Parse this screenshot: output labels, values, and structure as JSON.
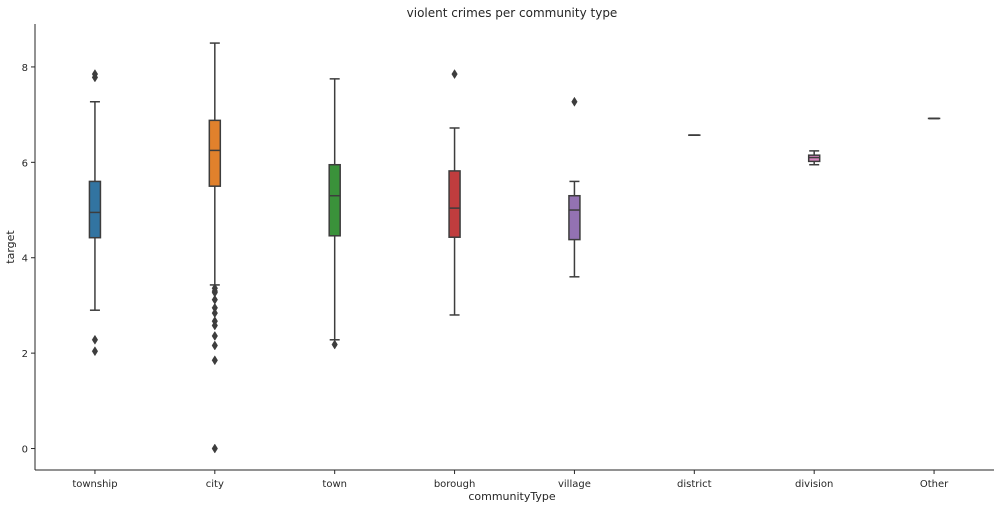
{
  "chart_data": {
    "type": "box",
    "title": "violent crimes per community type",
    "xlabel": "communityType",
    "ylabel": "target",
    "ylim": [
      -0.45,
      8.9
    ],
    "yticks": [
      0,
      2,
      4,
      6,
      8
    ],
    "grid": false,
    "categories": [
      "township",
      "city",
      "town",
      "borough",
      "village",
      "district",
      "division",
      "Other"
    ],
    "series": [
      {
        "category": "township",
        "color": "#3274a1",
        "q1": 4.42,
        "median": 4.95,
        "q3": 5.6,
        "whisker_low": 2.9,
        "whisker_high": 7.27,
        "outliers": [
          7.78,
          7.85,
          2.28,
          2.04
        ]
      },
      {
        "category": "city",
        "color": "#e1812c",
        "q1": 5.5,
        "median": 6.25,
        "q3": 6.88,
        "whisker_low": 3.43,
        "whisker_high": 8.5,
        "outliers": [
          3.36,
          3.3,
          3.27,
          3.12,
          2.95,
          2.84,
          2.67,
          2.58,
          2.36,
          2.16,
          1.85,
          0.0
        ]
      },
      {
        "category": "town",
        "color": "#3a923a",
        "q1": 4.46,
        "median": 5.3,
        "q3": 5.95,
        "whisker_low": 2.28,
        "whisker_high": 7.75,
        "outliers": [
          2.18
        ]
      },
      {
        "category": "borough",
        "color": "#c03d3e",
        "q1": 4.43,
        "median": 5.04,
        "q3": 5.82,
        "whisker_low": 2.8,
        "whisker_high": 6.72,
        "outliers": [
          7.85
        ]
      },
      {
        "category": "village",
        "color": "#9372b2",
        "q1": 4.38,
        "median": 5.0,
        "q3": 5.3,
        "whisker_low": 3.6,
        "whisker_high": 5.6,
        "outliers": [
          7.27
        ]
      },
      {
        "category": "district",
        "color": "#845b53",
        "q1": 6.57,
        "median": 6.57,
        "q3": 6.57,
        "whisker_low": 6.57,
        "whisker_high": 6.57,
        "outliers": []
      },
      {
        "category": "division",
        "color": "#d684bd",
        "q1": 6.02,
        "median": 6.1,
        "q3": 6.15,
        "whisker_low": 5.95,
        "whisker_high": 6.24,
        "outliers": []
      },
      {
        "category": "Other",
        "color": "#7f7f7f",
        "q1": 6.92,
        "median": 6.92,
        "q3": 6.92,
        "whisker_low": 6.92,
        "whisker_high": 6.92,
        "outliers": []
      }
    ]
  }
}
